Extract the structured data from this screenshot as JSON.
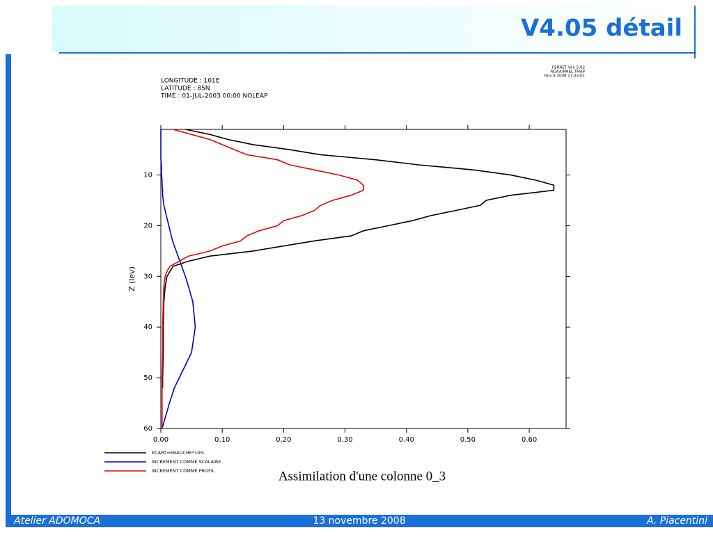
{
  "header": {
    "title": "V4.05 détail"
  },
  "chart_data": {
    "type": "line",
    "info": [
      "LONGITUDE : 101E",
      "LATITUDE : 85N",
      "TIME : 01-JUL-2003 00:00 NOLEAP"
    ],
    "stamp": [
      "FERRET Ver. 5.02",
      "NOAA/PMEL TMAP",
      "Nov  5 2008 17:23:01"
    ],
    "y_label": "Z (lev)",
    "caption": "Assimilation d'une colonne 0_3",
    "y_inverted": true,
    "levels": [
      1,
      2,
      3,
      4,
      5,
      6,
      7,
      8,
      9,
      10,
      11,
      12,
      13,
      14,
      15,
      16,
      17,
      18,
      19,
      20,
      21,
      22,
      23,
      24,
      25,
      26,
      27,
      28,
      29,
      30,
      32,
      35,
      40,
      45,
      50,
      52,
      55,
      60
    ],
    "series": [
      {
        "name": "ECART=EBAUCHE*10%",
        "color": "#000000",
        "values": [
          0.04,
          0.08,
          0.11,
          0.15,
          0.21,
          0.26,
          0.35,
          0.42,
          0.51,
          0.57,
          0.61,
          0.64,
          0.64,
          0.57,
          0.53,
          0.52,
          0.48,
          0.44,
          0.41,
          0.37,
          0.33,
          0.31,
          0.25,
          0.2,
          0.15,
          0.08,
          0.045,
          0.02,
          0.015,
          0.01,
          0.007,
          0.005,
          0.004,
          0.004,
          0.003,
          0.003,
          null,
          null
        ]
      },
      {
        "name": "INCREMENT COMME SCALAIRE",
        "color": "#0000cc",
        "values": [
          0,
          0,
          0,
          0,
          0,
          0,
          0,
          0.001,
          0.001,
          0.001,
          0.002,
          0.002,
          0.003,
          0.003,
          0.004,
          0.005,
          0.007,
          0.009,
          0.011,
          0.013,
          0.015,
          0.017,
          0.019,
          0.022,
          0.025,
          0.028,
          0.031,
          0.034,
          0.037,
          0.04,
          0.045,
          0.052,
          0.056,
          0.05,
          0.03,
          0.022,
          0.014,
          0.002
        ]
      },
      {
        "name": "INCREMENT COMME PROFIL",
        "color": "#ee0000",
        "values": [
          0.02,
          0.05,
          0.08,
          0.1,
          0.12,
          0.14,
          0.19,
          0.21,
          0.25,
          0.29,
          0.32,
          0.33,
          0.33,
          0.31,
          0.28,
          0.26,
          0.25,
          0.23,
          0.2,
          0.19,
          0.16,
          0.14,
          0.13,
          0.1,
          0.08,
          0.045,
          0.03,
          0.015,
          0.01,
          0.007,
          0.005,
          0.004,
          0.003,
          0.003,
          0.002,
          0.002,
          0.002,
          0.002
        ]
      }
    ],
    "xlim": [
      0,
      0.66
    ],
    "xticks": [
      {
        "value": 0,
        "label": "0.00"
      },
      {
        "value": 0.1,
        "label": "0.10"
      },
      {
        "value": 0.2,
        "label": "0.20"
      },
      {
        "value": 0.3,
        "label": "0.30"
      },
      {
        "value": 0.4,
        "label": "0.40"
      },
      {
        "value": 0.5,
        "label": "0.50"
      },
      {
        "value": 0.6,
        "label": "0.60"
      }
    ],
    "ylim": [
      1,
      60
    ],
    "yticks": [
      10,
      20,
      30,
      40,
      50,
      60
    ]
  },
  "footer": {
    "left": "Atelier ADOMOCA",
    "center": "13 novembre 2008",
    "right": "A. Piacentini"
  }
}
